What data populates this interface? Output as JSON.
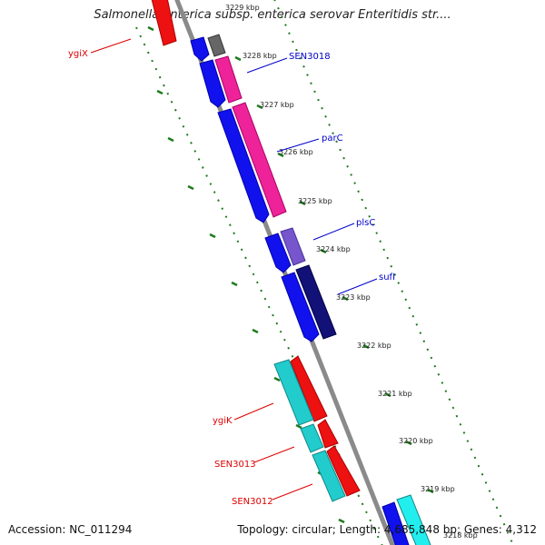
{
  "title": "Salmonella enterica subsp. enterica serovar Enteritidis str....",
  "accession": "Accession: NC_011294",
  "topology": "Topology: circular; Length: 4,685,848 bp; Genes: 4,312",
  "colors": {
    "backbone": "#8a8a8a",
    "tick": "#1e7a1e",
    "forward_label": "#0000cc",
    "reverse_label": "#dd0000"
  },
  "kbp_labels": [
    "3229 kbp",
    "3228 kbp",
    "3227 kbp",
    "3226 kbp",
    "3225 kbp",
    "3224 kbp",
    "3223 kbp",
    "3222 kbp",
    "3221 kbp",
    "3220 kbp",
    "3219 kbp",
    "3218 kbp"
  ],
  "gene_labels": {
    "ygiX": "ygiX",
    "SEN3018": "SEN3018",
    "parC": "parC",
    "plsC": "plsC",
    "sufI": "sufI",
    "ygiK": "ygiK",
    "SEN3013": "SEN3013",
    "SEN3012": "SEN3012"
  }
}
